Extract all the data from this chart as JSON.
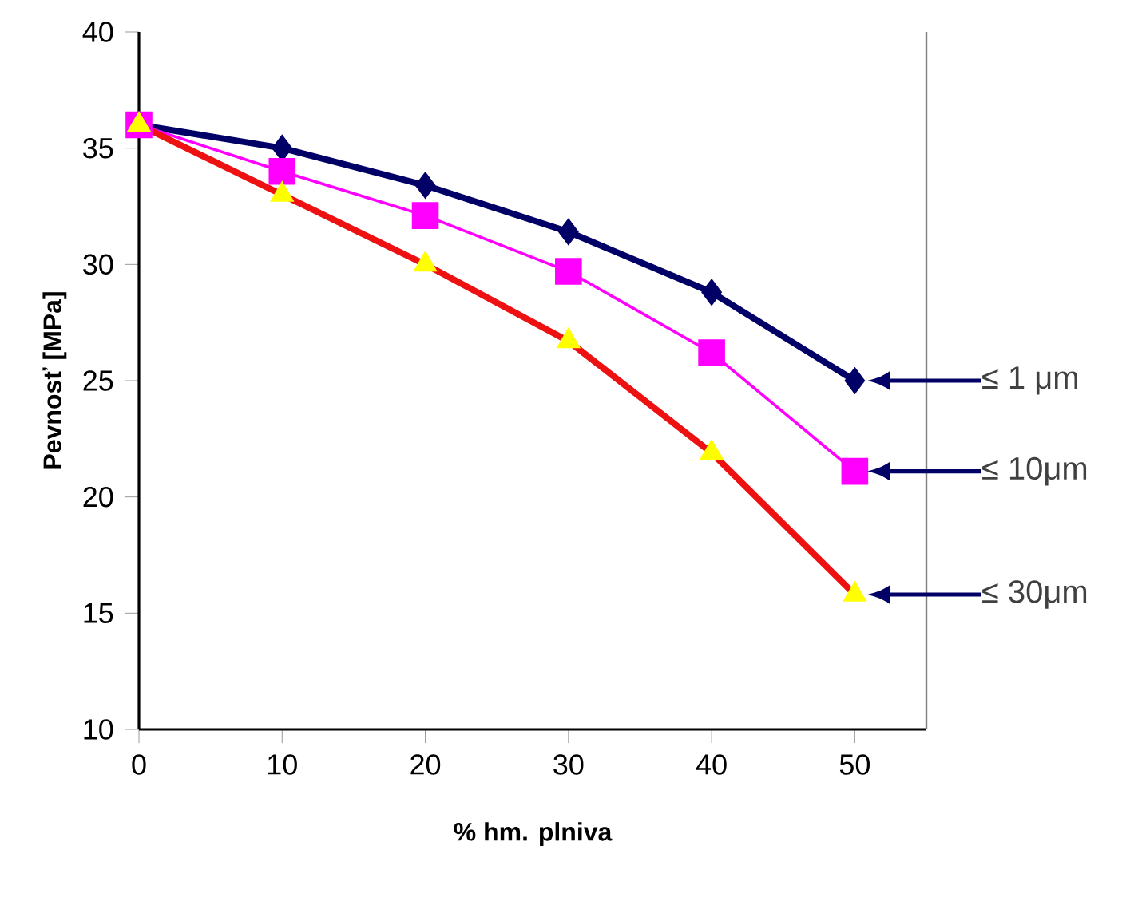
{
  "chart_data": {
    "type": "line",
    "xlabel": "% hm. plniva",
    "ylabel": "Pevnosť [MPa]",
    "x": [
      0,
      10,
      20,
      30,
      40,
      50
    ],
    "series": [
      {
        "color": "#000066",
        "marker": "diamond",
        "values": [
          36.0,
          35.0,
          33.4,
          31.4,
          28.8,
          25.0
        ]
      },
      {
        "color": "#ff00ff",
        "marker": "square",
        "values": [
          36.0,
          34.0,
          32.1,
          29.7,
          26.2,
          21.1
        ]
      },
      {
        "color": "#ee1111",
        "marker": "triangle",
        "colors": [
          "#ffff00",
          "#ffff00",
          "#ffff00",
          "#ffff00",
          "#ffff00",
          "#ffff00"
        ],
        "values": [
          36.0,
          33.0,
          30.0,
          26.7,
          21.9,
          15.8
        ]
      }
    ],
    "xlim": [
      0,
      55
    ],
    "ylim": [
      10,
      40
    ],
    "xticks": [
      0,
      10,
      20,
      30,
      40,
      50
    ],
    "yticks": [
      10,
      15,
      20,
      25,
      30,
      35,
      40
    ],
    "grid": false,
    "annotations": [
      "≤ 1 μm",
      "≤ 10μm",
      "≤ 30μm"
    ]
  }
}
